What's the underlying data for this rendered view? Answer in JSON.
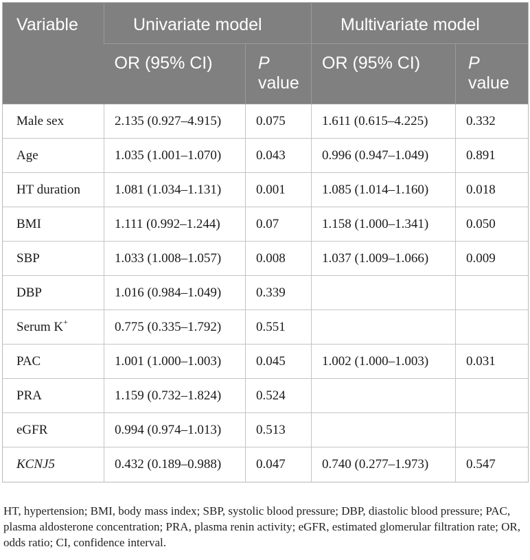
{
  "table": {
    "header": {
      "variable": "Variable",
      "univariate": "Univariate model",
      "multivariate": "Multivariate model",
      "or_ci": "OR (95% CI)",
      "p_italic": "P",
      "p_value": "value"
    },
    "rows": [
      {
        "variable": "Male sex",
        "uni_or": "2.135 (0.927–4.915)",
        "uni_p": "0.075",
        "multi_or": "1.611 (0.615–4.225)",
        "multi_p": "0.332"
      },
      {
        "variable": "Age",
        "uni_or": "1.035 (1.001–1.070)",
        "uni_p": "0.043",
        "multi_or": "0.996 (0.947–1.049)",
        "multi_p": "0.891"
      },
      {
        "variable": "HT duration",
        "uni_or": "1.081 (1.034–1.131)",
        "uni_p": "0.001",
        "multi_or": "1.085 (1.014–1.160)",
        "multi_p": "0.018"
      },
      {
        "variable": "BMI",
        "uni_or": "1.111 (0.992–1.244)",
        "uni_p": "0.07",
        "multi_or": "1.158 (1.000–1.341)",
        "multi_p": "0.050"
      },
      {
        "variable": "SBP",
        "uni_or": "1.033 (1.008–1.057)",
        "uni_p": "0.008",
        "multi_or": "1.037 (1.009–1.066)",
        "multi_p": "0.009"
      },
      {
        "variable": "DBP",
        "uni_or": "1.016 (0.984–1.049)",
        "uni_p": "0.339",
        "multi_or": "",
        "multi_p": ""
      },
      {
        "variable": "Serum K",
        "sup": "+",
        "uni_or": "0.775 (0.335–1.792)",
        "uni_p": "0.551",
        "multi_or": "",
        "multi_p": ""
      },
      {
        "variable": "PAC",
        "uni_or": "1.001 (1.000–1.003)",
        "uni_p": "0.045",
        "multi_or": "1.002 (1.000–1.003)",
        "multi_p": "0.031"
      },
      {
        "variable": "PRA",
        "uni_or": "1.159 (0.732–1.824)",
        "uni_p": "0.524",
        "multi_or": "",
        "multi_p": ""
      },
      {
        "variable": "eGFR",
        "uni_or": "0.994 (0.974–1.013)",
        "uni_p": "0.513",
        "multi_or": "",
        "multi_p": ""
      },
      {
        "variable": "KCNJ5",
        "italic": true,
        "uni_or": "0.432 (0.189–0.988)",
        "uni_p": "0.047",
        "multi_or": "0.740 (0.277–1.973)",
        "multi_p": "0.547"
      }
    ]
  },
  "footnote": "HT, hypertension; BMI, body mass index; SBP, systolic blood pressure; DBP, diastolic blood pressure; PAC, plasma aldosterone concentration; PRA, plasma renin activity; eGFR, estimated glomerular filtration rate; OR, odds ratio; CI, confidence interval."
}
